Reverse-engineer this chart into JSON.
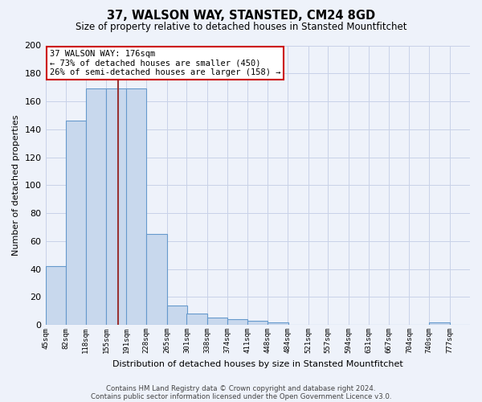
{
  "title": "37, WALSON WAY, STANSTED, CM24 8GD",
  "subtitle": "Size of property relative to detached houses in Stansted Mountfitchet",
  "xlabel": "Distribution of detached houses by size in Stansted Mountfitchet",
  "ylabel": "Number of detached properties",
  "footnote1": "Contains HM Land Registry data © Crown copyright and database right 2024.",
  "footnote2": "Contains public sector information licensed under the Open Government Licence v3.0.",
  "annotation_title": "37 WALSON WAY: 176sqm",
  "annotation_line2": "← 73% of detached houses are smaller (450)",
  "annotation_line3": "26% of semi-detached houses are larger (158) →",
  "bins": [
    45,
    82,
    118,
    155,
    191,
    228,
    265,
    301,
    338,
    374,
    411,
    448,
    484,
    521,
    557,
    594,
    631,
    667,
    704,
    740,
    777
  ],
  "values": [
    42,
    146,
    169,
    169,
    169,
    65,
    14,
    8,
    5,
    4,
    3,
    2,
    0,
    0,
    0,
    0,
    0,
    0,
    0,
    2,
    0
  ],
  "property_size": 176,
  "bar_color": "#c8d8ed",
  "bar_edge_color": "#6699cc",
  "vline_color": "#993333",
  "bg_color": "#eef2fa",
  "grid_color": "#c8d2e8",
  "annotation_box_color": "#ffffff",
  "annotation_box_edge": "#cc0000",
  "ylim": [
    0,
    200
  ],
  "yticks": [
    0,
    20,
    40,
    60,
    80,
    100,
    120,
    140,
    160,
    180,
    200
  ]
}
